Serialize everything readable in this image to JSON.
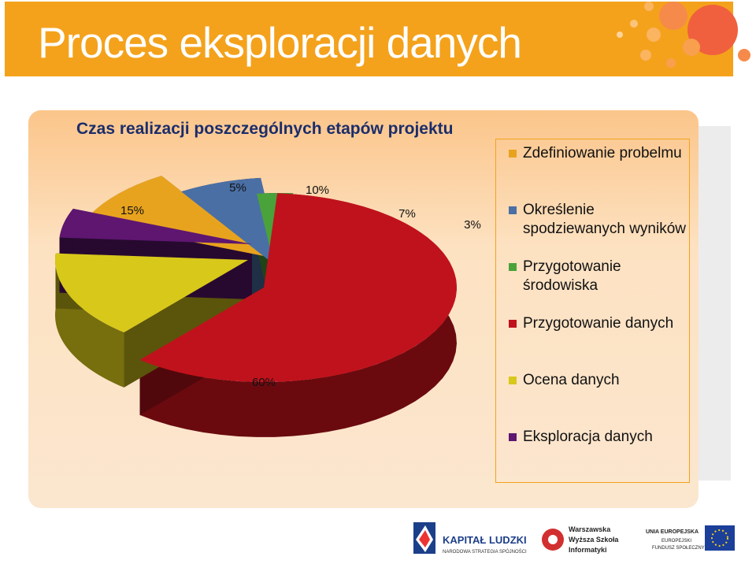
{
  "page": {
    "title": "Proces eksploracji danych"
  },
  "chart_data": {
    "type": "pie",
    "title": "Czas realizacji poszczególnych etapów projektu",
    "legend_position": "right",
    "slices": [
      {
        "label": "Zdefiniowanie probelmu",
        "value": 10,
        "value_label": "10%",
        "color": "#e8a31e"
      },
      {
        "label": "Określenie spodziewanych wyników",
        "value": 7,
        "value_label": "7%",
        "color": "#4a6fa5"
      },
      {
        "label": "Przygotowanie środowiska",
        "value": 3,
        "value_label": "3%",
        "color": "#4aa23a"
      },
      {
        "label": "Przygotowanie danych",
        "value": 60,
        "value_label": "60%",
        "color": "#c0121c"
      },
      {
        "label": "Ocena danych",
        "value": 15,
        "value_label": "15%",
        "color": "#d8c81a"
      },
      {
        "label": "Eksploracja danych",
        "value": 5,
        "value_label": "5%",
        "color": "#5e1670"
      }
    ]
  },
  "footer": {
    "logo1_main": "KAPITAŁ LUDZKI",
    "logo1_sub": "NARODOWA STRATEGIA SPÓJNOŚCI",
    "logo2_line1": "Warszawska",
    "logo2_line2": "Wyższa Szkoła",
    "logo2_line3": "Informatyki",
    "logo3_line1": "UNIA EUROPEJSKA",
    "logo3_line2": "EUROPEJSKI",
    "logo3_line3": "FUNDUSZ SPOŁECZNY"
  }
}
